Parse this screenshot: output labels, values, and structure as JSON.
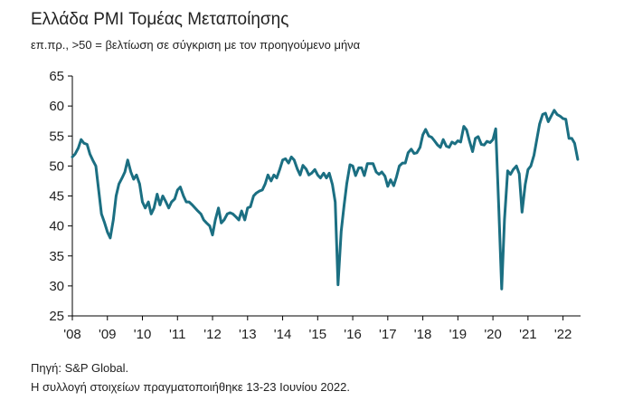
{
  "header": {
    "title": "Ελλάδα PMI Τομέας Μεταποίησης",
    "subtitle": "επ.πρ., >50 = βελτίωση σε σύγκριση με τον προηγούμενο μήνα"
  },
  "footer": {
    "source": "Πηγή: S&P Global.",
    "note": "Η συλλογή στοιχείων πραγματοποιήθηκε 13-23 Ιουνίου 2022."
  },
  "colors": {
    "line": "#1b6f82",
    "axis": "#000000"
  },
  "chart_data": {
    "type": "line",
    "title": "Ελλάδα PMI Τομέας Μεταποίησης",
    "subtitle": "επ.πρ., >50 = βελτίωση σε σύγκριση με τον προηγούμενο μήνα",
    "ylim": [
      25,
      65
    ],
    "yticks": [
      25,
      30,
      35,
      40,
      45,
      50,
      55,
      60,
      65
    ],
    "xlim": [
      2008.0,
      2022.5
    ],
    "xticks": [
      {
        "label": "'08",
        "x": 2008
      },
      {
        "label": "'09",
        "x": 2009
      },
      {
        "label": "'10",
        "x": 2010
      },
      {
        "label": "'11",
        "x": 2011
      },
      {
        "label": "'12",
        "x": 2012
      },
      {
        "label": "'13",
        "x": 2013
      },
      {
        "label": "'14",
        "x": 2014
      },
      {
        "label": "'15",
        "x": 2015
      },
      {
        "label": "'16",
        "x": 2016
      },
      {
        "label": "'17",
        "x": 2017
      },
      {
        "label": "'18",
        "x": 2018
      },
      {
        "label": "'19",
        "x": 2019
      },
      {
        "label": "'20",
        "x": 2020
      },
      {
        "label": "'21",
        "x": 2021
      },
      {
        "label": "'22",
        "x": 2022
      }
    ],
    "grid": false,
    "series": [
      {
        "points": [
          [
            2008.0,
            51.5
          ],
          [
            2008.08,
            52.0
          ],
          [
            2008.17,
            53.0
          ],
          [
            2008.25,
            54.4
          ],
          [
            2008.33,
            53.8
          ],
          [
            2008.42,
            53.6
          ],
          [
            2008.5,
            52.0
          ],
          [
            2008.58,
            51.0
          ],
          [
            2008.67,
            50.0
          ],
          [
            2008.75,
            46.0
          ],
          [
            2008.83,
            42.0
          ],
          [
            2008.92,
            40.5
          ],
          [
            2009.0,
            39.0
          ],
          [
            2009.08,
            38.0
          ],
          [
            2009.17,
            41.0
          ],
          [
            2009.25,
            45.0
          ],
          [
            2009.33,
            47.0
          ],
          [
            2009.42,
            48.0
          ],
          [
            2009.5,
            49.0
          ],
          [
            2009.58,
            51.0
          ],
          [
            2009.67,
            49.0
          ],
          [
            2009.75,
            47.8
          ],
          [
            2009.83,
            48.5
          ],
          [
            2009.92,
            47.0
          ],
          [
            2010.0,
            44.0
          ],
          [
            2010.08,
            43.0
          ],
          [
            2010.17,
            44.0
          ],
          [
            2010.25,
            42.0
          ],
          [
            2010.33,
            43.0
          ],
          [
            2010.42,
            45.3
          ],
          [
            2010.5,
            43.5
          ],
          [
            2010.58,
            45.0
          ],
          [
            2010.67,
            44.0
          ],
          [
            2010.75,
            43.0
          ],
          [
            2010.83,
            44.0
          ],
          [
            2010.92,
            44.5
          ],
          [
            2011.0,
            46.0
          ],
          [
            2011.08,
            46.5
          ],
          [
            2011.17,
            45.0
          ],
          [
            2011.25,
            44.0
          ],
          [
            2011.33,
            44.0
          ],
          [
            2011.42,
            43.5
          ],
          [
            2011.5,
            43.0
          ],
          [
            2011.58,
            42.5
          ],
          [
            2011.67,
            42.0
          ],
          [
            2011.75,
            41.0
          ],
          [
            2011.83,
            40.5
          ],
          [
            2011.92,
            40.0
          ],
          [
            2012.0,
            38.5
          ],
          [
            2012.08,
            41.0
          ],
          [
            2012.17,
            43.0
          ],
          [
            2012.25,
            40.5
          ],
          [
            2012.33,
            41.0
          ],
          [
            2012.42,
            42.0
          ],
          [
            2012.5,
            42.2
          ],
          [
            2012.58,
            42.0
          ],
          [
            2012.67,
            41.5
          ],
          [
            2012.75,
            41.0
          ],
          [
            2012.83,
            42.5
          ],
          [
            2012.92,
            41.0
          ],
          [
            2013.0,
            43.0
          ],
          [
            2013.08,
            43.2
          ],
          [
            2013.17,
            45.0
          ],
          [
            2013.25,
            45.5
          ],
          [
            2013.33,
            45.8
          ],
          [
            2013.42,
            46.0
          ],
          [
            2013.5,
            47.0
          ],
          [
            2013.58,
            48.5
          ],
          [
            2013.67,
            47.5
          ],
          [
            2013.75,
            48.5
          ],
          [
            2013.83,
            48.0
          ],
          [
            2013.92,
            49.5
          ],
          [
            2014.0,
            51.0
          ],
          [
            2014.08,
            51.2
          ],
          [
            2014.17,
            50.5
          ],
          [
            2014.25,
            51.5
          ],
          [
            2014.33,
            51.0
          ],
          [
            2014.42,
            49.5
          ],
          [
            2014.5,
            48.5
          ],
          [
            2014.58,
            50.1
          ],
          [
            2014.67,
            49.5
          ],
          [
            2014.75,
            48.5
          ],
          [
            2014.83,
            48.8
          ],
          [
            2014.92,
            49.4
          ],
          [
            2015.0,
            48.5
          ],
          [
            2015.08,
            48.0
          ],
          [
            2015.17,
            48.8
          ],
          [
            2015.25,
            48.0
          ],
          [
            2015.33,
            48.8
          ],
          [
            2015.42,
            46.9
          ],
          [
            2015.5,
            44.0
          ],
          [
            2015.58,
            30.2
          ],
          [
            2015.67,
            39.1
          ],
          [
            2015.75,
            43.3
          ],
          [
            2015.83,
            47.1
          ],
          [
            2015.92,
            50.2
          ],
          [
            2016.0,
            50.0
          ],
          [
            2016.08,
            48.4
          ],
          [
            2016.17,
            49.7
          ],
          [
            2016.25,
            49.7
          ],
          [
            2016.33,
            48.4
          ],
          [
            2016.42,
            50.4
          ],
          [
            2016.5,
            50.4
          ],
          [
            2016.58,
            50.4
          ],
          [
            2016.67,
            49.0
          ],
          [
            2016.75,
            48.6
          ],
          [
            2016.83,
            49.0
          ],
          [
            2016.92,
            48.3
          ],
          [
            2017.0,
            46.6
          ],
          [
            2017.08,
            47.7
          ],
          [
            2017.17,
            46.7
          ],
          [
            2017.25,
            48.2
          ],
          [
            2017.33,
            50.0
          ],
          [
            2017.42,
            50.5
          ],
          [
            2017.5,
            50.5
          ],
          [
            2017.58,
            52.2
          ],
          [
            2017.67,
            52.8
          ],
          [
            2017.75,
            52.1
          ],
          [
            2017.83,
            52.2
          ],
          [
            2017.92,
            53.1
          ],
          [
            2018.0,
            55.2
          ],
          [
            2018.08,
            56.1
          ],
          [
            2018.17,
            55.0
          ],
          [
            2018.25,
            54.8
          ],
          [
            2018.33,
            54.2
          ],
          [
            2018.42,
            53.5
          ],
          [
            2018.5,
            53.1
          ],
          [
            2018.58,
            54.4
          ],
          [
            2018.67,
            53.3
          ],
          [
            2018.75,
            53.1
          ],
          [
            2018.83,
            54.0
          ],
          [
            2018.92,
            53.7
          ],
          [
            2019.0,
            54.2
          ],
          [
            2019.08,
            54.0
          ],
          [
            2019.17,
            56.6
          ],
          [
            2019.25,
            56.0
          ],
          [
            2019.33,
            54.2
          ],
          [
            2019.42,
            52.4
          ],
          [
            2019.5,
            54.6
          ],
          [
            2019.58,
            54.9
          ],
          [
            2019.67,
            53.6
          ],
          [
            2019.75,
            53.5
          ],
          [
            2019.83,
            54.1
          ],
          [
            2019.92,
            53.9
          ],
          [
            2020.0,
            54.4
          ],
          [
            2020.08,
            56.2
          ],
          [
            2020.17,
            42.5
          ],
          [
            2020.25,
            29.5
          ],
          [
            2020.33,
            41.1
          ],
          [
            2020.42,
            49.2
          ],
          [
            2020.5,
            48.6
          ],
          [
            2020.58,
            49.4
          ],
          [
            2020.67,
            50.0
          ],
          [
            2020.75,
            48.7
          ],
          [
            2020.83,
            42.3
          ],
          [
            2020.92,
            46.9
          ],
          [
            2021.0,
            49.4
          ],
          [
            2021.08,
            50.0
          ],
          [
            2021.17,
            51.8
          ],
          [
            2021.25,
            54.4
          ],
          [
            2021.33,
            57.0
          ],
          [
            2021.42,
            58.6
          ],
          [
            2021.5,
            58.8
          ],
          [
            2021.58,
            57.4
          ],
          [
            2021.67,
            58.4
          ],
          [
            2021.75,
            59.3
          ],
          [
            2021.83,
            58.6
          ],
          [
            2021.92,
            58.3
          ],
          [
            2022.0,
            57.9
          ],
          [
            2022.08,
            57.8
          ],
          [
            2022.17,
            54.6
          ],
          [
            2022.25,
            54.6
          ],
          [
            2022.33,
            53.8
          ],
          [
            2022.42,
            51.1
          ]
        ]
      }
    ]
  }
}
